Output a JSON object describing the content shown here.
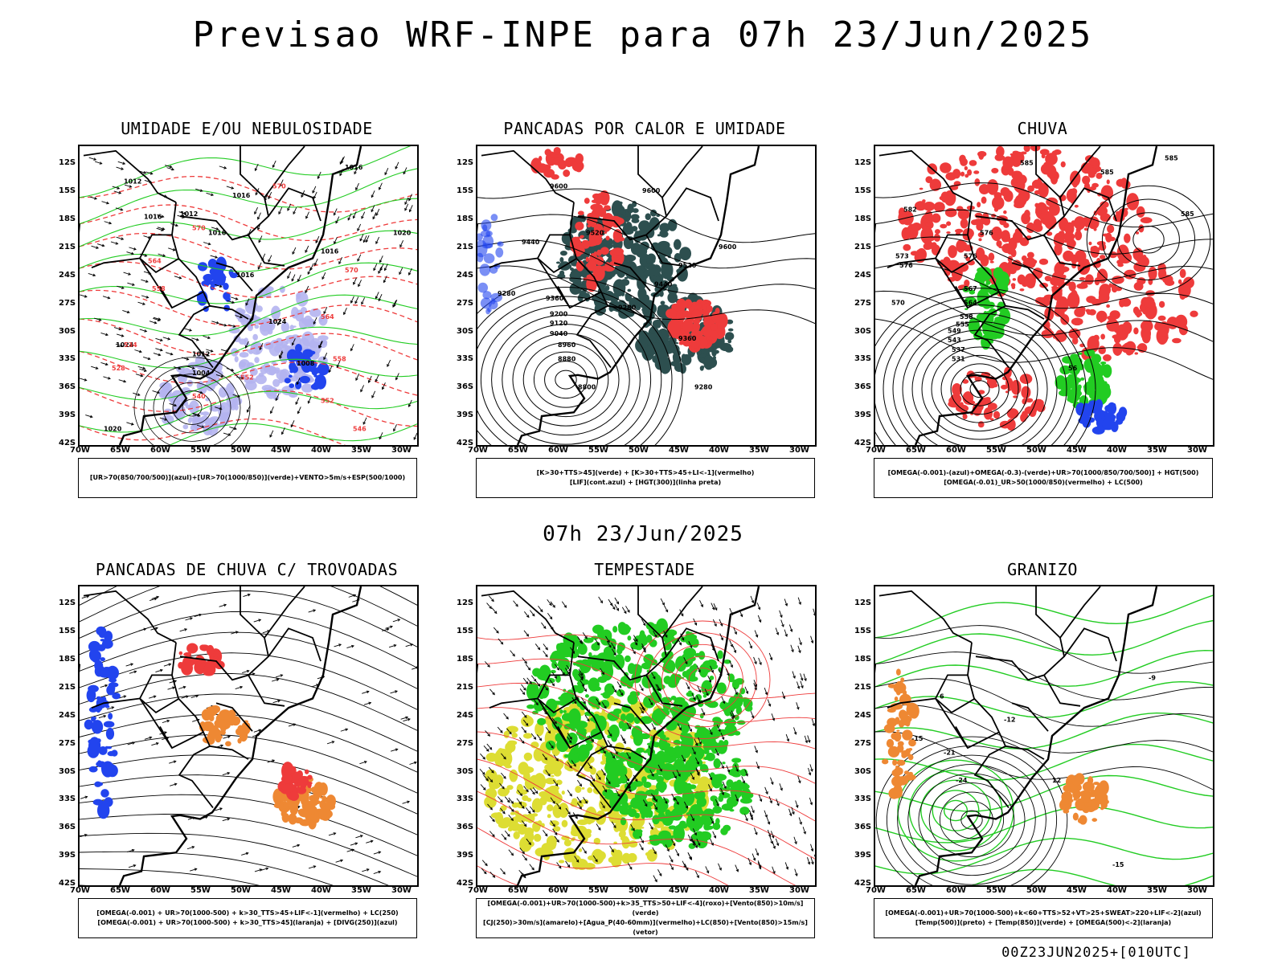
{
  "title": "Previsao WRF-INPE  para 07h 23/Jun/2025",
  "mid_title": "07h 23/Jun/2025",
  "footer": "00Z23JUN2025+[010UTC]",
  "lat_labels": [
    "12S",
    "15S",
    "18S",
    "21S",
    "24S",
    "27S",
    "30S",
    "33S",
    "36S",
    "39S",
    "42S"
  ],
  "lon_labels": [
    "70W",
    "65W",
    "60W",
    "55W",
    "50W",
    "45W",
    "40W",
    "35W",
    "30W"
  ],
  "colors": {
    "red": "#ee3b3b",
    "green": "#22cc22",
    "blue": "#2244ee",
    "lavender": "#b4b4f0",
    "darkteal": "#2d4f4f",
    "orange": "#ee8833",
    "yellow": "#dddd33",
    "black": "#000000"
  },
  "panels": [
    {
      "id": "p1",
      "title": "UMIDADE E/OU NEBULOSIDADE",
      "legend": [
        "[UR>70(850/700/500)](azul)+[UR>70(1000/850)](verde)+VENTO>5m/s+ESP(500/1000)"
      ],
      "labels": [
        {
          "t": "1012",
          "lat": -14.0,
          "lon": -64.5
        },
        {
          "t": "1016",
          "lat": -17.8,
          "lon": -62.0
        },
        {
          "t": "1012",
          "lat": -17.5,
          "lon": -57.5
        },
        {
          "t": "1016",
          "lat": -15.5,
          "lon": -51.0
        },
        {
          "t": "1016",
          "lat": -19.5,
          "lon": -54.0
        },
        {
          "t": "1016",
          "lat": -12.5,
          "lon": -37.0
        },
        {
          "t": "1020",
          "lat": -19.5,
          "lon": -31.0
        },
        {
          "t": "1016",
          "lat": -21.5,
          "lon": -40.0
        },
        {
          "t": "1016",
          "lat": -24.0,
          "lon": -50.5
        },
        {
          "t": "1012",
          "lat": -32.5,
          "lon": -56.0
        },
        {
          "t": "1008",
          "lat": -33.5,
          "lon": -43.0
        },
        {
          "t": "1004",
          "lat": -34.5,
          "lon": -56.0
        },
        {
          "t": "1024",
          "lat": -31.5,
          "lon": -65.5
        },
        {
          "t": "1020",
          "lat": -40.5,
          "lon": -67.0
        },
        {
          "t": "1024",
          "lat": -29.0,
          "lon": -46.5
        },
        {
          "t": "570",
          "lat": -14.5,
          "lon": -46.0
        },
        {
          "t": "570",
          "lat": -19.0,
          "lon": -56.0
        },
        {
          "t": "564",
          "lat": -22.5,
          "lon": -61.5
        },
        {
          "t": "558",
          "lat": -25.5,
          "lon": -61.0
        },
        {
          "t": "570",
          "lat": -23.5,
          "lon": -37.0
        },
        {
          "t": "564",
          "lat": -28.5,
          "lon": -40.0
        },
        {
          "t": "558",
          "lat": -33.0,
          "lon": -38.5
        },
        {
          "t": "552",
          "lat": -37.5,
          "lon": -40.0
        },
        {
          "t": "546",
          "lat": -40.5,
          "lon": -36.0
        },
        {
          "t": "534",
          "lat": -31.5,
          "lon": -64.5
        },
        {
          "t": "528",
          "lat": -34.0,
          "lon": -66.0
        },
        {
          "t": "540",
          "lat": -37.0,
          "lon": -56.0
        },
        {
          "t": "552",
          "lat": -35.0,
          "lon": -50.0
        }
      ]
    },
    {
      "id": "p2",
      "title": "PANCADAS POR CALOR E UMIDADE",
      "legend": [
        "[K>30+TTS>45](verde) + [K>30+TTS>45+LI<-1](vermelho)",
        "[LIF](cont.azul) + [HGT(300)](linha preta)"
      ],
      "labels": [
        {
          "t": "9600",
          "lat": -14.5,
          "lon": -61.0
        },
        {
          "t": "9600",
          "lat": -15.0,
          "lon": -49.5
        },
        {
          "t": "9520",
          "lat": -19.5,
          "lon": -56.5
        },
        {
          "t": "9440",
          "lat": -20.5,
          "lon": -64.5
        },
        {
          "t": "9520",
          "lat": -23.0,
          "lon": -45.0
        },
        {
          "t": "9600",
          "lat": -21.0,
          "lon": -40.0
        },
        {
          "t": "9280",
          "lat": -26.0,
          "lon": -67.5
        },
        {
          "t": "9360",
          "lat": -26.5,
          "lon": -61.5
        },
        {
          "t": "9280",
          "lat": -27.5,
          "lon": -52.5
        },
        {
          "t": "9200",
          "lat": -28.2,
          "lon": -61.0
        },
        {
          "t": "9120",
          "lat": -29.2,
          "lon": -61.0
        },
        {
          "t": "9040",
          "lat": -30.3,
          "lon": -61.0
        },
        {
          "t": "8960",
          "lat": -31.5,
          "lon": -60.0
        },
        {
          "t": "8880",
          "lat": -33.0,
          "lon": -60.0
        },
        {
          "t": "8800",
          "lat": -36.0,
          "lon": -57.5
        },
        {
          "t": "9360",
          "lat": -30.8,
          "lon": -45.0
        },
        {
          "t": "9280",
          "lat": -36.0,
          "lon": -43.0
        },
        {
          "t": "9440",
          "lat": -25.0,
          "lon": -48.0
        }
      ]
    },
    {
      "id": "p3",
      "title": "CHUVA",
      "legend": [
        "[OMEGA(-0.001)-(azul)+OMEGA(-0.3)-(verde)+UR>70(1000/850/700/500)] + HGT(500)",
        "[OMEGA(-0.01)_UR>50(1000/850)(vermelho) + LC(500)"
      ],
      "labels": [
        {
          "t": "585",
          "lat": -12.0,
          "lon": -52.0
        },
        {
          "t": "585",
          "lat": -13.0,
          "lon": -42.0
        },
        {
          "t": "585",
          "lat": -17.5,
          "lon": -32.0
        },
        {
          "t": "585",
          "lat": -11.5,
          "lon": -34.0
        },
        {
          "t": "582",
          "lat": -17.0,
          "lon": -66.5
        },
        {
          "t": "576",
          "lat": -19.5,
          "lon": -57.0
        },
        {
          "t": "576",
          "lat": -22.0,
          "lon": -59.0
        },
        {
          "t": "576",
          "lat": -23.0,
          "lon": -67.0
        },
        {
          "t": "573",
          "lat": -22.0,
          "lon": -67.5
        },
        {
          "t": "567",
          "lat": -25.5,
          "lon": -59.0
        },
        {
          "t": "564",
          "lat": -27.0,
          "lon": -59.0
        },
        {
          "t": "558",
          "lat": -28.5,
          "lon": -59.5
        },
        {
          "t": "555",
          "lat": -29.3,
          "lon": -60.0
        },
        {
          "t": "549",
          "lat": -30.0,
          "lon": -61.0
        },
        {
          "t": "543",
          "lat": -31.0,
          "lon": -61.0
        },
        {
          "t": "537",
          "lat": -32.0,
          "lon": -60.5
        },
        {
          "t": "531",
          "lat": -33.0,
          "lon": -60.5
        },
        {
          "t": "56",
          "lat": -34.0,
          "lon": -46.0
        },
        {
          "t": "570",
          "lat": -27.0,
          "lon": -68.0
        }
      ]
    },
    {
      "id": "p4",
      "title": "PANCADAS DE CHUVA C/ TROVOADAS",
      "legend": [
        "[OMEGA(-0.001) + UR>70(1000-500) + k>30_TTS>45+LIF<-1](vermelho) + LC(250)",
        "[OMEGA(-0.001) + UR>70(1000-500) + k>30_TTS>45](laranja) + [DIVG(250)](azul)"
      ],
      "labels": []
    },
    {
      "id": "p5",
      "title": "TEMPESTADE",
      "legend": [
        "[OMEGA(-0.001)+UR>70(1000-500)+k>35_TTS>50+LIF<-4](roxo)+[Vento(850)>10m/s](verde)",
        "[CJ(250)>30m/s](amarelo)+[Agua_P(40-60mm)](vermelho)+LC(850)+[Vento(850)>15m/s](vetor)"
      ],
      "labels": []
    },
    {
      "id": "p6",
      "title": "GRANIZO",
      "legend": [
        "[OMEGA(-0.001)+UR>70(1000-500)+k<60+TTS>52+VT>25+SWEAT>220+LIF<-2](azul)",
        "[Temp(500)](preto) + [Temp(850)](verde) + [OMEGA(500)<-2](laranja)"
      ],
      "labels": [
        {
          "t": "-12",
          "lat": -24.5,
          "lon": -54.0
        },
        {
          "t": "-15",
          "lat": -26.5,
          "lon": -65.5
        },
        {
          "t": "-21",
          "lat": -28.0,
          "lon": -61.5
        },
        {
          "t": "-24",
          "lat": -31.0,
          "lon": -60.0
        },
        {
          "t": "-15",
          "lat": -40.0,
          "lon": -40.5
        },
        {
          "t": "12",
          "lat": -31.0,
          "lon": -48.0
        },
        {
          "t": "6",
          "lat": -22.0,
          "lon": -62.0
        },
        {
          "t": "-9",
          "lat": -20.0,
          "lon": -36.0
        }
      ]
    }
  ]
}
